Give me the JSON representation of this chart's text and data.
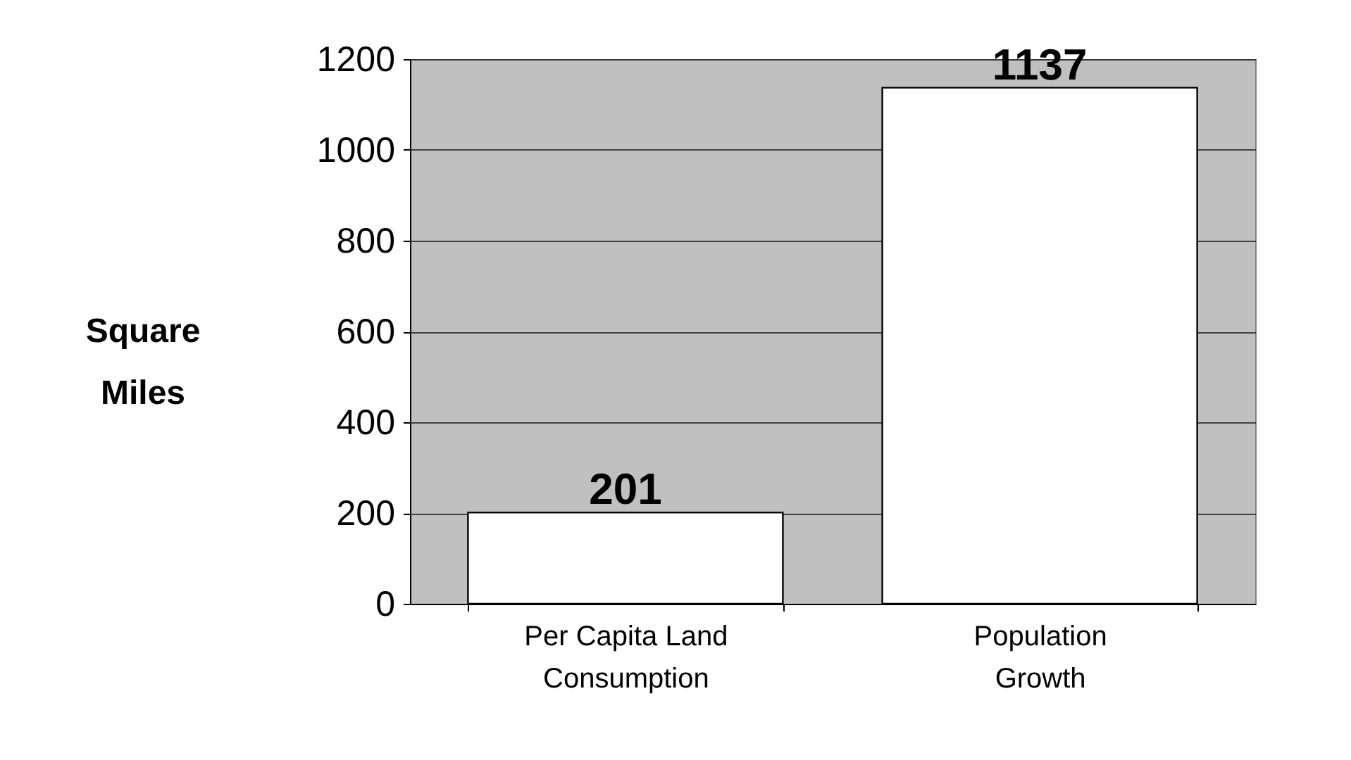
{
  "chart_data": {
    "type": "bar",
    "categories": [
      "Per Capita Land Consumption",
      "Population Growth"
    ],
    "values": [
      201,
      1137
    ],
    "color": "#ffffff",
    "ylabel": "Square Miles",
    "ylim": [
      0,
      1200
    ],
    "yticks": [
      0,
      200,
      400,
      600,
      800,
      1000,
      1200
    ],
    "grid": "y",
    "data_labels": true
  }
}
